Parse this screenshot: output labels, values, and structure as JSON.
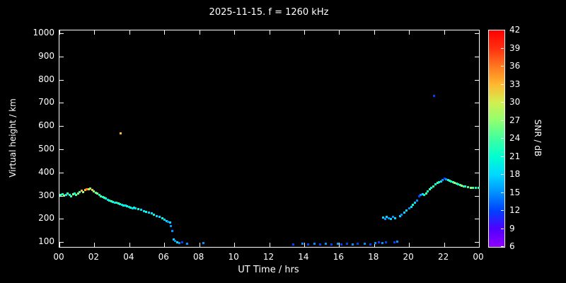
{
  "chart_data": {
    "type": "scatter",
    "title": "2025-11-15. f = 1260 kHz",
    "xlabel": "UT Time / hrs",
    "ylabel": "Virtual height / km",
    "xlim": [
      0,
      24
    ],
    "ylim": [
      79,
      1012
    ],
    "x_ticks": {
      "values": [
        0,
        2,
        4,
        6,
        8,
        10,
        12,
        14,
        16,
        18,
        20,
        22,
        24
      ],
      "labels": [
        "00",
        "02",
        "04",
        "06",
        "08",
        "10",
        "12",
        "14",
        "16",
        "18",
        "20",
        "22",
        "00"
      ]
    },
    "y_ticks": [
      100,
      200,
      300,
      400,
      500,
      600,
      700,
      800,
      900,
      1000
    ],
    "background": "#000000",
    "axis_color": "#ffffff",
    "grid": false,
    "colorbar": {
      "label": "SNR / dB",
      "min": 6,
      "max": 42,
      "tick_levels": [
        6,
        9,
        12,
        15,
        18,
        21,
        24,
        27,
        30,
        33,
        36,
        39,
        42
      ],
      "colors": [
        "#9000ff",
        "#5000ff",
        "#0040ff",
        "#0090ff",
        "#00d8ff",
        "#00ffd0",
        "#40ffa0",
        "#90ff70",
        "#d0f050",
        "#ffb830",
        "#ff7820",
        "#ff3010",
        "#ff0000"
      ]
    },
    "points_format": [
      "time_hrs",
      "virtual_height_km",
      "snr_db"
    ],
    "points": [
      [
        0.05,
        305,
        24
      ],
      [
        0.15,
        308,
        21
      ],
      [
        0.25,
        302,
        27
      ],
      [
        0.35,
        306,
        18
      ],
      [
        0.45,
        310,
        24
      ],
      [
        0.55,
        304,
        21
      ],
      [
        0.65,
        300,
        24
      ],
      [
        0.75,
        308,
        27
      ],
      [
        0.85,
        312,
        21
      ],
      [
        0.95,
        306,
        24
      ],
      [
        1.05,
        312,
        27
      ],
      [
        1.15,
        318,
        24
      ],
      [
        1.25,
        322,
        33
      ],
      [
        1.35,
        318,
        27
      ],
      [
        1.45,
        326,
        33
      ],
      [
        1.55,
        330,
        36
      ],
      [
        1.65,
        328,
        30
      ],
      [
        1.75,
        331,
        27
      ],
      [
        1.85,
        326,
        33
      ],
      [
        1.95,
        320,
        27
      ],
      [
        2.05,
        315,
        24
      ],
      [
        2.15,
        310,
        27
      ],
      [
        2.25,
        304,
        21
      ],
      [
        2.35,
        300,
        24
      ],
      [
        2.45,
        296,
        21
      ],
      [
        2.55,
        292,
        24
      ],
      [
        2.65,
        288,
        21
      ],
      [
        2.75,
        284,
        18
      ],
      [
        2.85,
        281,
        21
      ],
      [
        2.95,
        278,
        24
      ],
      [
        3.05,
        275,
        21
      ],
      [
        3.15,
        272,
        18
      ],
      [
        3.25,
        270,
        21
      ],
      [
        3.35,
        267,
        24
      ],
      [
        3.45,
        264,
        21
      ],
      [
        3.5,
        570,
        33
      ],
      [
        3.55,
        262,
        18
      ],
      [
        3.65,
        260,
        21
      ],
      [
        3.75,
        258,
        18
      ],
      [
        3.85,
        255,
        21
      ],
      [
        3.95,
        252,
        18
      ],
      [
        4.05,
        250,
        21
      ],
      [
        4.15,
        248,
        18
      ],
      [
        4.25,
        251,
        21
      ],
      [
        4.35,
        246,
        18
      ],
      [
        4.5,
        243,
        21
      ],
      [
        4.65,
        240,
        18
      ],
      [
        4.8,
        236,
        18
      ],
      [
        4.95,
        232,
        21
      ],
      [
        5.1,
        228,
        18
      ],
      [
        5.25,
        224,
        18
      ],
      [
        5.4,
        219,
        21
      ],
      [
        5.55,
        214,
        18
      ],
      [
        5.7,
        209,
        18
      ],
      [
        5.85,
        203,
        21
      ],
      [
        6.0,
        197,
        18
      ],
      [
        6.1,
        193,
        18
      ],
      [
        6.2,
        190,
        15
      ],
      [
        6.3,
        187,
        18
      ],
      [
        6.35,
        170,
        15
      ],
      [
        6.45,
        150,
        15
      ],
      [
        6.5,
        112,
        18
      ],
      [
        6.6,
        106,
        15
      ],
      [
        6.7,
        100,
        18
      ],
      [
        6.85,
        97,
        15
      ],
      [
        7.0,
        99,
        12
      ],
      [
        7.3,
        95,
        15
      ],
      [
        8.2,
        96,
        15
      ],
      [
        13.35,
        90,
        12
      ],
      [
        13.9,
        94,
        15
      ],
      [
        14.2,
        91,
        12
      ],
      [
        14.55,
        95,
        15
      ],
      [
        14.9,
        92,
        12
      ],
      [
        15.2,
        95,
        15
      ],
      [
        15.55,
        91,
        12
      ],
      [
        15.9,
        94,
        15
      ],
      [
        16.1,
        90,
        12
      ],
      [
        16.45,
        94,
        12
      ],
      [
        16.75,
        92,
        15
      ],
      [
        17.05,
        95,
        12
      ],
      [
        17.45,
        94,
        15
      ],
      [
        17.75,
        92,
        12
      ],
      [
        18.05,
        96,
        15
      ],
      [
        18.25,
        100,
        12
      ],
      [
        18.45,
        98,
        15
      ],
      [
        18.65,
        101,
        12
      ],
      [
        19.15,
        100,
        12
      ],
      [
        19.3,
        104,
        15
      ],
      [
        18.5,
        206,
        18
      ],
      [
        18.6,
        201,
        15
      ],
      [
        18.7,
        210,
        18
      ],
      [
        18.8,
        204,
        15
      ],
      [
        18.95,
        200,
        18
      ],
      [
        19.05,
        209,
        15
      ],
      [
        19.2,
        204,
        18
      ],
      [
        19.45,
        214,
        18
      ],
      [
        19.55,
        220,
        15
      ],
      [
        19.7,
        229,
        18
      ],
      [
        19.85,
        238,
        18
      ],
      [
        20.0,
        248,
        15
      ],
      [
        20.1,
        254,
        18
      ],
      [
        20.2,
        261,
        21
      ],
      [
        20.3,
        270,
        18
      ],
      [
        20.45,
        281,
        15
      ],
      [
        20.55,
        298,
        12
      ],
      [
        20.65,
        304,
        15
      ],
      [
        20.75,
        309,
        18
      ],
      [
        20.85,
        306,
        21
      ],
      [
        20.95,
        312,
        24
      ],
      [
        21.05,
        320,
        21
      ],
      [
        21.15,
        329,
        24
      ],
      [
        21.25,
        334,
        21
      ],
      [
        21.35,
        341,
        24
      ],
      [
        21.4,
        731,
        12
      ],
      [
        21.5,
        349,
        21
      ],
      [
        21.6,
        355,
        24
      ],
      [
        21.7,
        360,
        21
      ],
      [
        21.8,
        364,
        18
      ],
      [
        21.9,
        369,
        15
      ],
      [
        22.0,
        374,
        12
      ],
      [
        22.1,
        371,
        15
      ],
      [
        22.2,
        369,
        21
      ],
      [
        22.3,
        367,
        24
      ],
      [
        22.4,
        364,
        21
      ],
      [
        22.5,
        360,
        24
      ],
      [
        22.6,
        356,
        27
      ],
      [
        22.7,
        352,
        24
      ],
      [
        22.8,
        350,
        21
      ],
      [
        22.9,
        347,
        24
      ],
      [
        23.0,
        345,
        27
      ],
      [
        23.1,
        342,
        24
      ],
      [
        23.2,
        340,
        21
      ],
      [
        23.35,
        338,
        24
      ],
      [
        23.5,
        335,
        27
      ],
      [
        23.65,
        336,
        24
      ],
      [
        23.8,
        334,
        21
      ],
      [
        23.95,
        335,
        24
      ]
    ]
  }
}
